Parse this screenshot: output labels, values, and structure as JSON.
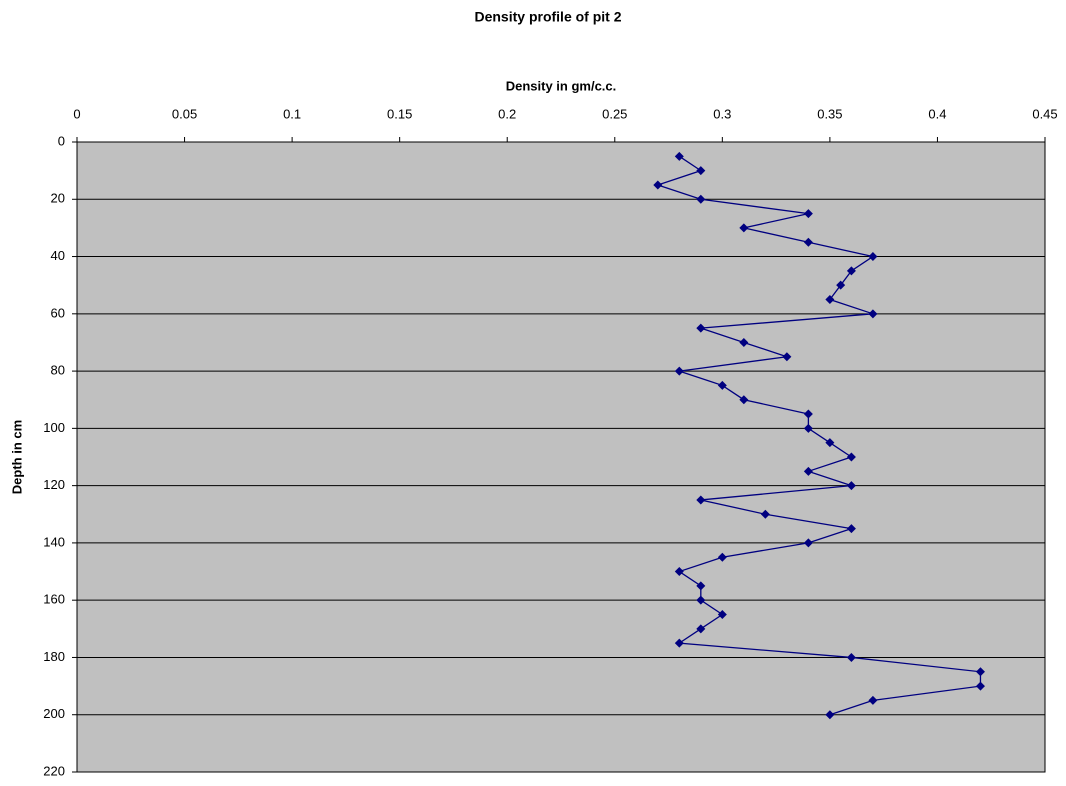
{
  "chart_data": {
    "type": "line",
    "title": "Density profile of  pit 2",
    "x_label": "Density in gm/c.c.",
    "y_label": "Depth in cm",
    "x": [
      0.28,
      0.29,
      0.27,
      0.29,
      0.34,
      0.31,
      0.34,
      0.37,
      0.36,
      0.355,
      0.35,
      0.37,
      0.29,
      0.31,
      0.33,
      0.28,
      0.3,
      0.31,
      0.34,
      0.34,
      0.35,
      0.36,
      0.34,
      0.36,
      0.29,
      0.32,
      0.36,
      0.34,
      0.3,
      0.28,
      0.29,
      0.29,
      0.3,
      0.29,
      0.28,
      0.36,
      0.42,
      0.42,
      0.37,
      0.35
    ],
    "y": [
      5,
      10,
      15,
      20,
      25,
      30,
      35,
      40,
      45,
      50,
      55,
      60,
      65,
      70,
      75,
      80,
      85,
      90,
      95,
      100,
      105,
      110,
      115,
      120,
      125,
      130,
      135,
      140,
      145,
      150,
      155,
      160,
      165,
      170,
      175,
      180,
      185,
      190,
      195,
      200
    ],
    "color": "#000080",
    "xlim": [
      0,
      0.45
    ],
    "xticks": [
      0,
      0.05,
      0.1,
      0.15,
      0.2,
      0.25,
      0.3,
      0.35,
      0.4,
      0.45
    ],
    "ylim": [
      0,
      220
    ],
    "yticks": [
      0,
      20,
      40,
      60,
      80,
      100,
      120,
      140,
      160,
      180,
      200,
      220
    ],
    "y_inverted": true,
    "x_axis_position": "top",
    "grid": true,
    "plot_background": "#c0c0c0"
  }
}
